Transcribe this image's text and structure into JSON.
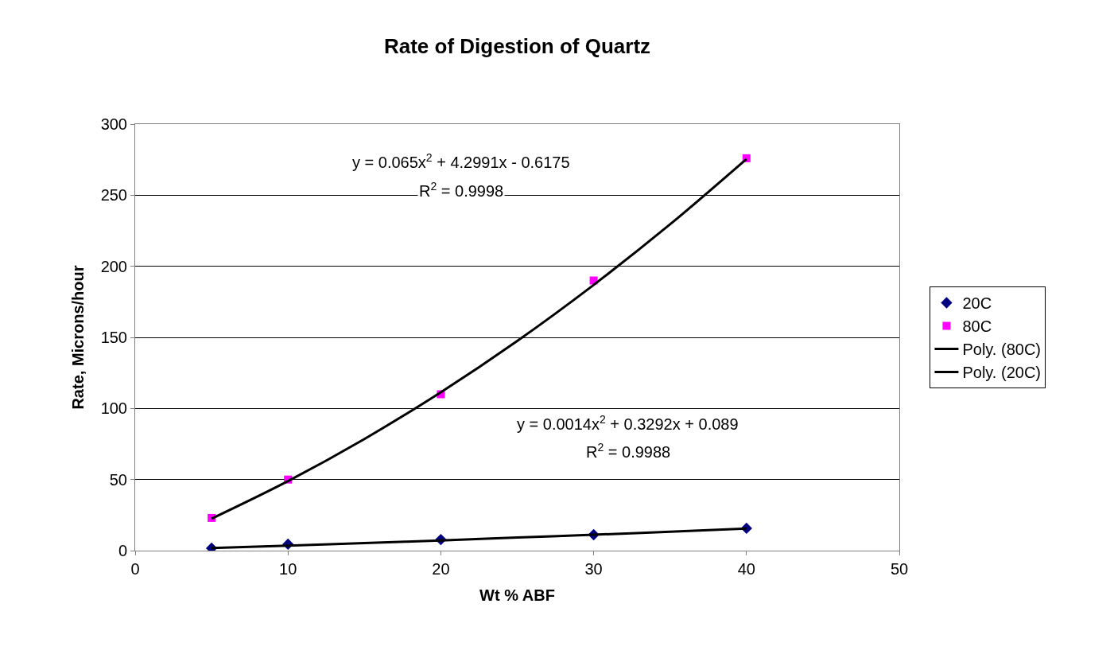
{
  "chart_data": {
    "type": "scatter",
    "title": "Rate of Digestion of Quartz",
    "xlabel": "Wt % ABF",
    "ylabel": "Rate, Microns/hour",
    "x": [
      5,
      10,
      20,
      30,
      40
    ],
    "series": [
      {
        "name": "20C",
        "color": "#000080",
        "marker": "diamond",
        "values": [
          1.7,
          4.5,
          7.8,
          11.2,
          15.7
        ]
      },
      {
        "name": "80C",
        "color": "#ff00ff",
        "marker": "square",
        "values": [
          23,
          50,
          110,
          190,
          276
        ]
      },
      {
        "name": "Poly. (80C)",
        "type": "line",
        "color": "#000000",
        "marker": "none",
        "x": [
          5,
          10,
          15,
          20,
          25,
          30,
          35,
          40
        ],
        "values": [
          22.5,
          48.9,
          78.5,
          111.4,
          147.5,
          186.9,
          229.5,
          275.4
        ]
      },
      {
        "name": "Poly. (20C)",
        "type": "line",
        "color": "#000000",
        "marker": "none",
        "x": [
          5,
          10,
          15,
          20,
          25,
          30,
          35,
          40
        ],
        "values": [
          1.8,
          3.5,
          5.3,
          7.2,
          9.2,
          11.2,
          13.3,
          15.5
        ]
      }
    ],
    "annotations": [
      "y = 0.065x$^{2}$ + 4.2991x - 0.6175",
      "R$^{2}$ = 0.9998",
      "y = 0.0014x$^{2}$ + 0.3292x + 0.089",
      "R$^{2}$ = 0.9988"
    ],
    "xlim": [
      0,
      50
    ],
    "xticks": [
      0,
      10,
      20,
      30,
      40,
      50
    ],
    "ylim": [
      0,
      300
    ],
    "yticks": [
      0,
      50,
      100,
      150,
      200,
      250,
      300
    ],
    "grid": "y",
    "legend": "right"
  }
}
